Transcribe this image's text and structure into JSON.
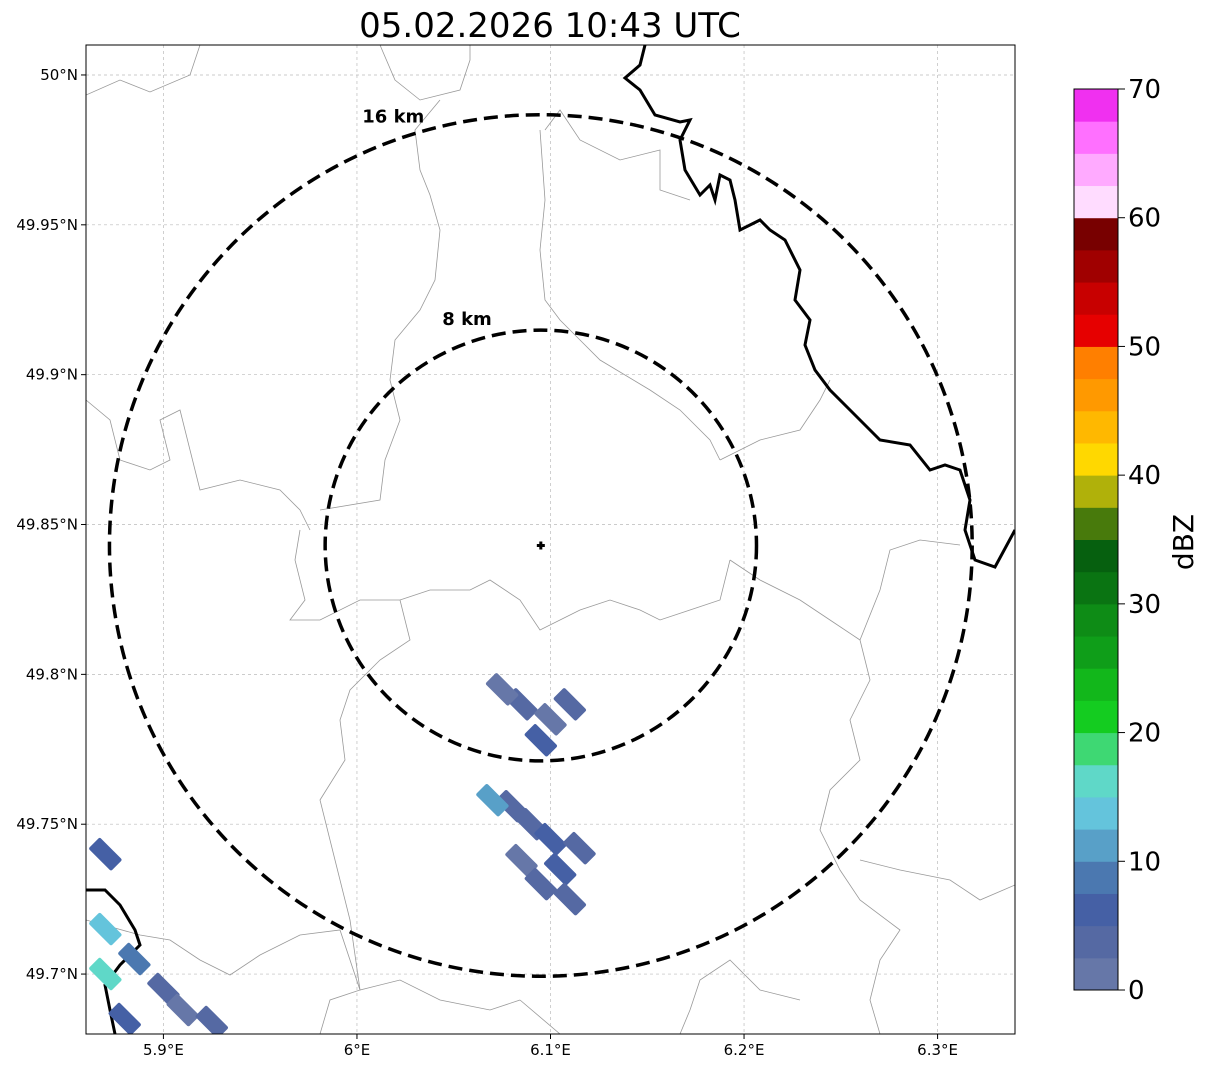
{
  "title": "05.02.2026 10:43 UTC",
  "map": {
    "lon_range": [
      5.86,
      6.34
    ],
    "lat_range": [
      49.68,
      50.01
    ],
    "lon_ticks": [
      5.9,
      6.0,
      6.1,
      6.2,
      6.3
    ],
    "lat_ticks": [
      49.7,
      49.75,
      49.8,
      49.85,
      49.9,
      49.95,
      50.0
    ],
    "lon_tick_labels": [
      "5.9°E",
      "6°E",
      "6.1°E",
      "6.2°E",
      "6.3°E"
    ],
    "lat_tick_labels": [
      "49.7°N",
      "49.75°N",
      "49.8°N",
      "49.85°N",
      "49.9°N",
      "49.95°N",
      "50°N"
    ],
    "grid": true,
    "center": {
      "lon": 6.095,
      "lat": 49.843
    },
    "rings": [
      {
        "label": "8 km",
        "radius_km": 8
      },
      {
        "label": "16 km",
        "radius_km": 16
      }
    ]
  },
  "colorbar": {
    "label": "dBZ",
    "ticks": [
      "0",
      "10",
      "20",
      "30",
      "40",
      "50",
      "60",
      "70"
    ],
    "colors": [
      "#6677a8",
      "#5569a3",
      "#4560a5",
      "#4b78b0",
      "#58a0c8",
      "#64c4dc",
      "#5fd8c8",
      "#3ed873",
      "#14cc20",
      "#12b71b",
      "#0f9e19",
      "#0e8c16",
      "#0a7412",
      "#06600f",
      "#487a0c",
      "#b0b10a",
      "#ffd800",
      "#ffb800",
      "#ff9900",
      "#ff7f00",
      "#e60000",
      "#c80000",
      "#a00000",
      "#780000",
      "#ffdcff",
      "#ffaaff",
      "#ff70ff",
      "#f030f0"
    ]
  },
  "echoes": [
    {
      "lon": 6.085,
      "lat": 49.79,
      "dbz": 3
    },
    {
      "lon": 6.1,
      "lat": 49.785,
      "dbz": 2
    },
    {
      "lon": 6.11,
      "lat": 49.79,
      "dbz": 4
    },
    {
      "lon": 6.095,
      "lat": 49.778,
      "dbz": 5
    },
    {
      "lon": 6.075,
      "lat": 49.795,
      "dbz": 1
    },
    {
      "lon": 6.08,
      "lat": 49.756,
      "dbz": 4
    },
    {
      "lon": 6.07,
      "lat": 49.758,
      "dbz": 10
    },
    {
      "lon": 6.09,
      "lat": 49.75,
      "dbz": 3
    },
    {
      "lon": 6.1,
      "lat": 49.745,
      "dbz": 5
    },
    {
      "lon": 6.085,
      "lat": 49.738,
      "dbz": 2
    },
    {
      "lon": 6.095,
      "lat": 49.73,
      "dbz": 4
    },
    {
      "lon": 6.105,
      "lat": 49.735,
      "dbz": 6
    },
    {
      "lon": 6.11,
      "lat": 49.725,
      "dbz": 3
    },
    {
      "lon": 6.115,
      "lat": 49.742,
      "dbz": 4
    },
    {
      "lon": 5.87,
      "lat": 49.74,
      "dbz": 6
    },
    {
      "lon": 5.87,
      "lat": 49.715,
      "dbz": 14
    },
    {
      "lon": 5.885,
      "lat": 49.705,
      "dbz": 9
    },
    {
      "lon": 5.87,
      "lat": 49.7,
      "dbz": 16
    },
    {
      "lon": 5.9,
      "lat": 49.695,
      "dbz": 4
    },
    {
      "lon": 5.91,
      "lat": 49.688,
      "dbz": 2
    },
    {
      "lon": 5.88,
      "lat": 49.685,
      "dbz": 7
    },
    {
      "lon": 5.925,
      "lat": 49.684,
      "dbz": 3
    }
  ]
}
